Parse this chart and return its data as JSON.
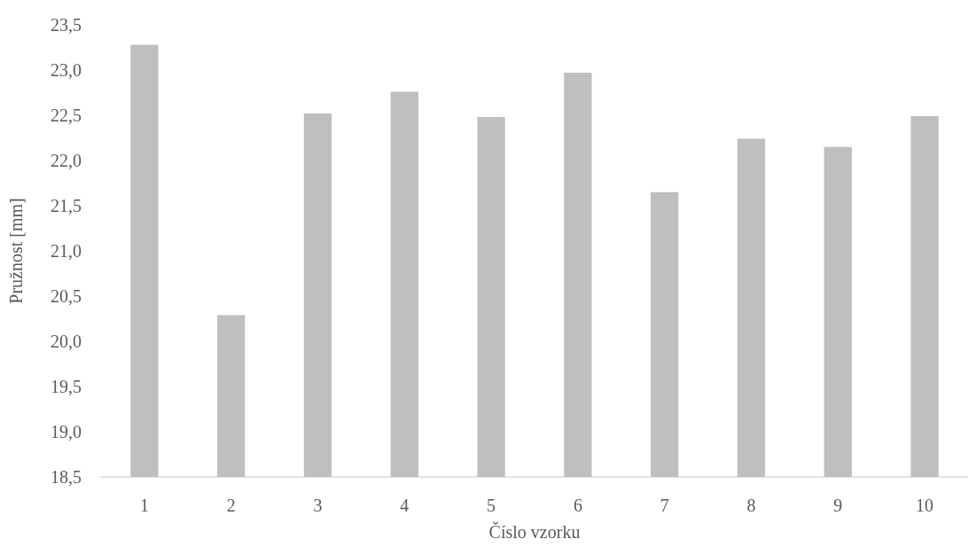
{
  "chart_data": {
    "type": "bar",
    "xlabel": "Číslo vzorku",
    "ylabel": "Pružnost [mm]",
    "categories": [
      "1",
      "2",
      "3",
      "4",
      "5",
      "6",
      "7",
      "8",
      "9",
      "10"
    ],
    "values": [
      23.28,
      20.29,
      22.52,
      22.76,
      22.48,
      22.97,
      21.65,
      22.24,
      22.15,
      22.49
    ],
    "color": "#bfbfbf",
    "ylim": [
      18.5,
      23.5
    ],
    "yticks": [
      {
        "value": 18.5,
        "label": "18,5"
      },
      {
        "value": 19,
        "label": "19,0"
      },
      {
        "value": 19.5,
        "label": "19,5"
      },
      {
        "value": 20,
        "label": "20,0"
      },
      {
        "value": 20.5,
        "label": "20,5"
      },
      {
        "value": 21,
        "label": "21,0"
      },
      {
        "value": 21.5,
        "label": "21,5"
      },
      {
        "value": 22,
        "label": "22,0"
      },
      {
        "value": 22.5,
        "label": "22,5"
      },
      {
        "value": 23,
        "label": "23,0"
      },
      {
        "value": 23.5,
        "label": "23,5"
      }
    ],
    "grid": false
  }
}
